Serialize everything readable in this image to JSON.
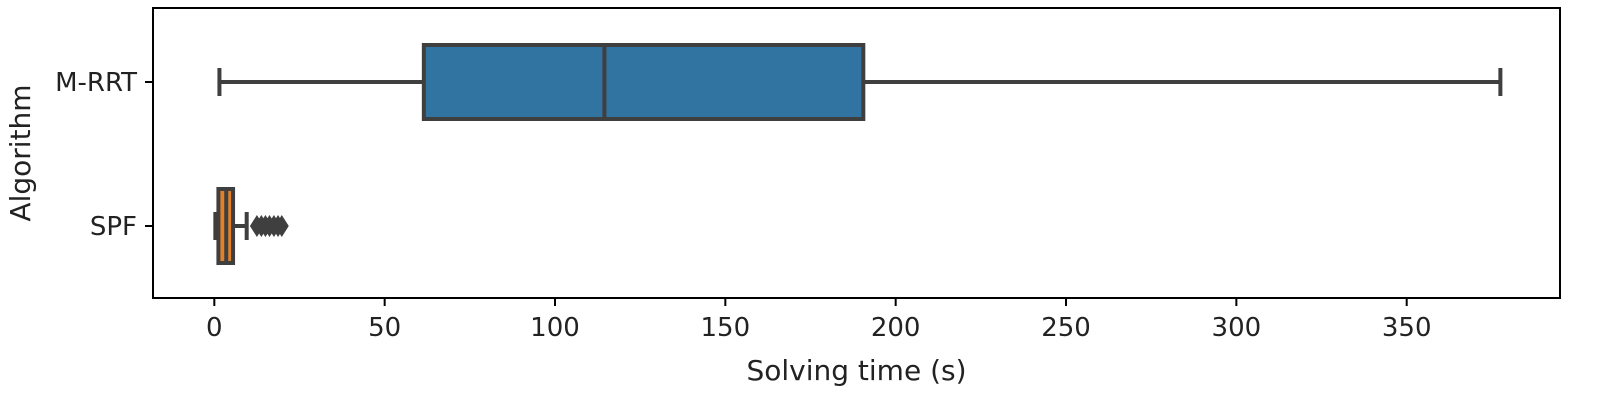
{
  "chart_data": {
    "type": "boxplot",
    "orientation": "horizontal",
    "xlabel": "Solving time (s)",
    "ylabel": "Algorithm",
    "xlim": [
      -18,
      395
    ],
    "xticks": [
      0,
      50,
      100,
      150,
      200,
      250,
      300,
      350
    ],
    "grid": false,
    "categories": [
      "M-RRT",
      "SPF"
    ],
    "series": [
      {
        "name": "M-RRT",
        "color": "#3274a1",
        "whisker_low": 1.5,
        "q1": 61.5,
        "median": 114.5,
        "q3": 190.5,
        "whisker_high": 377.5,
        "outliers": []
      },
      {
        "name": "SPF",
        "color": "#e1812c",
        "whisker_low": 0.3,
        "q1": 1.2,
        "median": 3.5,
        "q3": 5.5,
        "whisker_high": 9.5,
        "outliers": [
          12.5,
          13.8,
          15.0,
          16.2,
          17.5,
          18.7,
          19.8
        ]
      }
    ],
    "edge_color": "#3f3f3f",
    "outlier_color": "#3f3f3f"
  }
}
